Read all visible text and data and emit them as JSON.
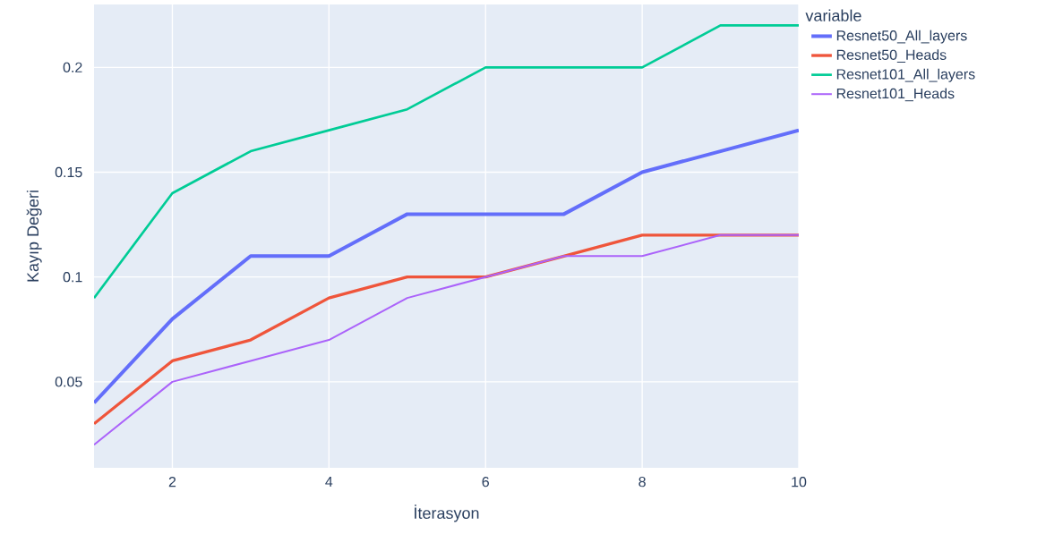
{
  "chart_data": {
    "type": "line",
    "xlabel": "İterasyon",
    "ylabel": "Kayıp Değeri",
    "legend_title": "variable",
    "x": [
      1,
      2,
      3,
      4,
      5,
      6,
      7,
      8,
      9,
      10
    ],
    "series": [
      {
        "name": "Resnet50_All_layers",
        "color": "#636efa",
        "values": [
          0.04,
          0.08,
          0.11,
          0.11,
          0.13,
          0.13,
          0.13,
          0.15,
          0.16,
          0.17
        ]
      },
      {
        "name": "Resnet50_Heads",
        "color": "#ef553b",
        "values": [
          0.03,
          0.06,
          0.07,
          0.09,
          0.1,
          0.1,
          0.11,
          0.12,
          0.12,
          0.12
        ]
      },
      {
        "name": "Resnet101_All_layers",
        "color": "#00cc96",
        "values": [
          0.09,
          0.14,
          0.16,
          0.17,
          0.18,
          0.2,
          0.2,
          0.2,
          0.22,
          0.22
        ]
      },
      {
        "name": "Resnet101_Heads",
        "color": "#ab63fa",
        "values": [
          0.02,
          0.05,
          0.06,
          0.07,
          0.09,
          0.1,
          0.11,
          0.11,
          0.12,
          0.12
        ]
      }
    ],
    "xlim": [
      1,
      10
    ],
    "ylim": [
      0.009,
      0.23
    ],
    "xticks": [
      2,
      4,
      6,
      8,
      10
    ],
    "yticks": [
      0.05,
      0.1,
      0.15,
      0.2
    ],
    "grid": true,
    "legend": "top right",
    "line_style": "solid"
  }
}
